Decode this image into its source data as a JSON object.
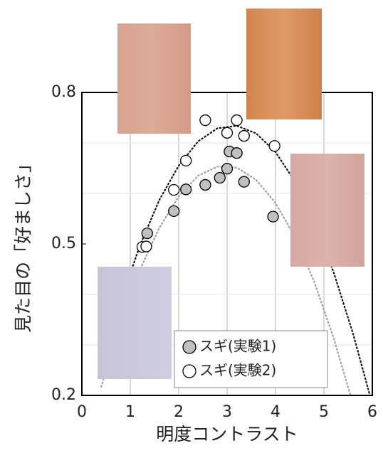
{
  "chart_data": {
    "type": "scatter",
    "xlabel": "明度コントラスト",
    "ylabel": "見た目の「好ましさ」",
    "xlim": [
      0,
      6
    ],
    "ylim": [
      0.2,
      0.8
    ],
    "xticks": [
      0,
      1,
      2,
      3,
      4,
      5,
      6
    ],
    "yticks": [
      0.2,
      0.5,
      0.8
    ],
    "minor_yticks": [
      0.3,
      0.4,
      0.6,
      0.7
    ],
    "grid": true,
    "legend": "lower right",
    "series": [
      {
        "name": "スギ(実験1)",
        "color": "#c0c0c0",
        "x": [
          1.35,
          1.9,
          2.15,
          2.55,
          2.85,
          3.0,
          3.05,
          3.2,
          3.35,
          3.95
        ],
        "y": [
          0.521,
          0.565,
          0.608,
          0.617,
          0.631,
          0.649,
          0.683,
          0.68,
          0.623,
          0.554
        ]
      },
      {
        "name": "スギ(実験2)",
        "color": "#ffffff",
        "x": [
          1.25,
          1.33,
          1.9,
          2.15,
          2.55,
          3.0,
          3.2,
          3.35,
          3.98
        ],
        "y": [
          0.494,
          0.495,
          0.607,
          0.665,
          0.745,
          0.72,
          0.745,
          0.714,
          0.694
        ]
      }
    ],
    "fit_curves": [
      {
        "color": "#111111",
        "x": [
          0.4,
          0.8,
          1.2,
          1.6,
          2.0,
          2.4,
          2.8,
          3.2,
          3.6,
          4.0,
          4.4,
          4.8,
          5.2,
          5.6,
          5.95
        ],
        "y": [
          0.255,
          0.386,
          0.497,
          0.587,
          0.655,
          0.703,
          0.729,
          0.734,
          0.719,
          0.682,
          0.624,
          0.545,
          0.444,
          0.323,
          0.2
        ]
      },
      {
        "color": "#a0a0a0",
        "x": [
          0.4,
          0.8,
          1.2,
          1.6,
          2.0,
          2.4,
          2.8,
          3.2,
          3.6,
          4.0,
          4.4,
          4.8,
          5.2,
          5.55
        ],
        "y": [
          0.217,
          0.344,
          0.449,
          0.532,
          0.594,
          0.635,
          0.653,
          0.651,
          0.627,
          0.581,
          0.514,
          0.425,
          0.314,
          0.2
        ]
      }
    ]
  }
}
